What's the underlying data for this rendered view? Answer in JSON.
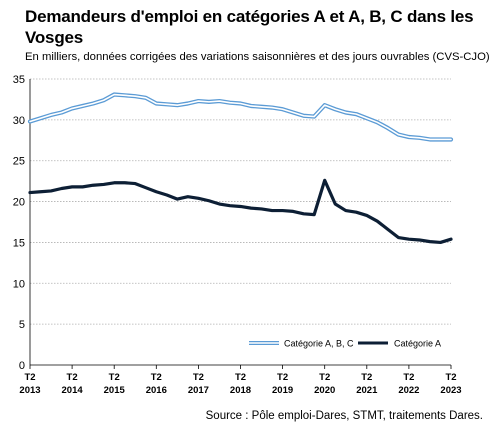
{
  "header": {
    "title": "Demandeurs d'emploi en catégories A et A, B, C dans les Vosges",
    "subtitle": "En milliers, données corrigées des variations saisonnières et des jours ouvrables (CVS-CJO)"
  },
  "footer": {
    "source": "Source : Pôle emploi-Dares, STMT, traitements Dares."
  },
  "chart_data": {
    "type": "line",
    "title": "Demandeurs d'emploi en catégories A et A, B, C dans les Vosges",
    "subtitle": "En milliers, données corrigées des variations saisonnières et des jours ouvrables (CVS-CJO)",
    "ylim": [
      0,
      35
    ],
    "yticks": [
      0,
      5,
      10,
      15,
      20,
      25,
      30,
      35
    ],
    "grid": true,
    "legend_position": "bottom-right inside plot",
    "xtick_labels": [
      [
        "T2",
        "2013"
      ],
      [
        "T2",
        "2014"
      ],
      [
        "T2",
        "2015"
      ],
      [
        "T2",
        "2016"
      ],
      [
        "T2",
        "2017"
      ],
      [
        "T2",
        "2018"
      ],
      [
        "T2",
        "2019"
      ],
      [
        "T2",
        "2020"
      ],
      [
        "T2",
        "2021"
      ],
      [
        "T2",
        "2022"
      ],
      [
        "T2",
        "2023"
      ]
    ],
    "x": [
      "2013-T2",
      "2013-T3",
      "2013-T4",
      "2014-T1",
      "2014-T2",
      "2014-T3",
      "2014-T4",
      "2015-T1",
      "2015-T2",
      "2015-T3",
      "2015-T4",
      "2016-T1",
      "2016-T2",
      "2016-T3",
      "2016-T4",
      "2017-T1",
      "2017-T2",
      "2017-T3",
      "2017-T4",
      "2018-T1",
      "2018-T2",
      "2018-T3",
      "2018-T4",
      "2019-T1",
      "2019-T2",
      "2019-T3",
      "2019-T4",
      "2020-T1",
      "2020-T2",
      "2020-T3",
      "2020-T4",
      "2021-T1",
      "2021-T2",
      "2021-T3",
      "2021-T4",
      "2022-T1",
      "2022-T2",
      "2022-T3",
      "2022-T4",
      "2023-T1",
      "2023-T2"
    ],
    "series": [
      {
        "name": "Catégorie A, B, C",
        "color": "#5b9bd5",
        "style": "double",
        "values": [
          29.8,
          30.2,
          30.6,
          30.9,
          31.4,
          31.7,
          32.0,
          32.4,
          33.1,
          33.0,
          32.9,
          32.7,
          32.0,
          31.9,
          31.8,
          32.0,
          32.3,
          32.2,
          32.3,
          32.1,
          32.0,
          31.7,
          31.6,
          31.5,
          31.3,
          30.9,
          30.5,
          30.4,
          31.8,
          31.3,
          30.9,
          30.7,
          30.2,
          29.7,
          29.0,
          28.2,
          27.9,
          27.8,
          27.6,
          27.6,
          27.6
        ]
      },
      {
        "name": "Catégorie A",
        "color": "#0d1f35",
        "style": "solid",
        "values": [
          21.1,
          21.2,
          21.3,
          21.6,
          21.8,
          21.8,
          22.0,
          22.1,
          22.3,
          22.3,
          22.2,
          21.7,
          21.2,
          20.8,
          20.3,
          20.6,
          20.4,
          20.1,
          19.7,
          19.5,
          19.4,
          19.2,
          19.1,
          18.9,
          18.9,
          18.8,
          18.5,
          18.4,
          22.6,
          19.7,
          18.9,
          18.7,
          18.3,
          17.6,
          16.6,
          15.6,
          15.4,
          15.3,
          15.1,
          15.0,
          15.4
        ]
      }
    ]
  }
}
